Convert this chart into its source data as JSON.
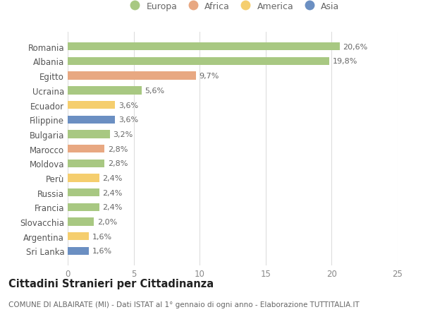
{
  "countries": [
    "Romania",
    "Albania",
    "Egitto",
    "Ucraina",
    "Ecuador",
    "Filippine",
    "Bulgaria",
    "Marocco",
    "Moldova",
    "Perù",
    "Russia",
    "Francia",
    "Slovacchia",
    "Argentina",
    "Sri Lanka"
  ],
  "values": [
    20.6,
    19.8,
    9.7,
    5.6,
    3.6,
    3.6,
    3.2,
    2.8,
    2.8,
    2.4,
    2.4,
    2.4,
    2.0,
    1.6,
    1.6
  ],
  "continents": [
    "Europa",
    "Europa",
    "Africa",
    "Europa",
    "America",
    "Asia",
    "Europa",
    "Africa",
    "Europa",
    "America",
    "Europa",
    "Europa",
    "Europa",
    "America",
    "Asia"
  ],
  "continent_colors": {
    "Europa": "#a8c882",
    "Africa": "#e8a882",
    "America": "#f5ce6e",
    "Asia": "#6b8fc2"
  },
  "legend_order": [
    "Europa",
    "Africa",
    "America",
    "Asia"
  ],
  "xlim": [
    0,
    25
  ],
  "xticks": [
    0,
    5,
    10,
    15,
    20,
    25
  ],
  "title_main": "Cittadini Stranieri per Cittadinanza",
  "title_sub": "COMUNE DI ALBAIRATE (MI) - Dati ISTAT al 1° gennaio di ogni anno - Elaborazione TUTTITALIA.IT",
  "background_color": "#ffffff",
  "bar_height": 0.55,
  "label_fontsize": 8,
  "tick_fontsize": 8.5,
  "title_fontsize": 10.5,
  "subtitle_fontsize": 7.5
}
